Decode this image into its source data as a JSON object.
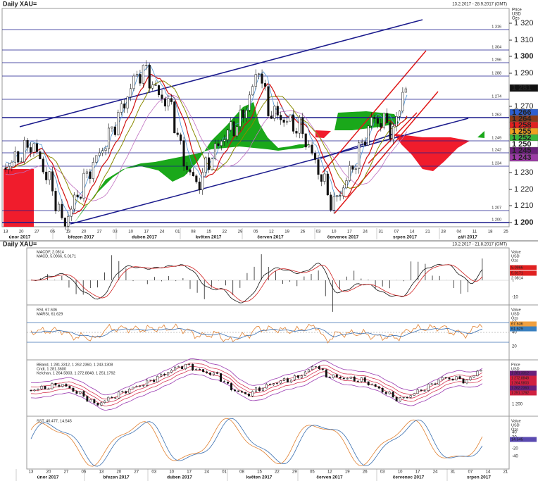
{
  "main": {
    "title": "Daily XAU=",
    "range": "13.2.2017 - 28.9.2017 (GMT)",
    "axis_units": [
      "Price",
      "USD",
      "Ozs"
    ],
    "price_ticks": [
      "1 320",
      "1 310",
      "1 300",
      "1 290",
      "1 270",
      "1 230",
      "1 220",
      "1 210",
      "1 200"
    ],
    "levels": [
      "1 316",
      "1 304",
      "1 296",
      "1 288",
      "1 274",
      "1 263",
      "1 249",
      "1 242",
      "1 234",
      "1 207",
      "1 200"
    ],
    "markers": [
      "1 281",
      "1 266",
      "1 264",
      "1 258",
      "1 255",
      "1 252",
      "1 250",
      "1 245",
      "1 243"
    ],
    "dates": [
      "13",
      "20",
      "27",
      "06",
      "13",
      "20",
      "27",
      "03",
      "10",
      "17",
      "24",
      "01",
      "08",
      "15",
      "22",
      "29",
      "05",
      "12",
      "19",
      "26",
      "03",
      "10",
      "17",
      "24",
      "31",
      "07",
      "14",
      "21",
      "28",
      "04",
      "11",
      "18",
      "25"
    ],
    "months": [
      "únor 2017",
      "březen 2017",
      "duben 2017",
      "květen 2017",
      "červen 2017",
      "červenec 2017",
      "srpen 2017",
      "září 2017"
    ]
  },
  "lower": {
    "title": "Daily XAU=",
    "range": "13.2.2017 - 21.8.2017 (GMT)",
    "macd": {
      "legend": [
        "MACDF, 2.0814",
        "MACD, 5.0966, 5.0171"
      ],
      "axis_units": [
        "Value",
        "USD",
        "Ozs"
      ],
      "ticks": [
        "0",
        "-10"
      ],
      "markers": [
        "5.0966",
        "5.0171",
        "2.0814"
      ]
    },
    "rsi": {
      "legend": [
        "RSI, 67.636",
        "MARSI, 61.629"
      ],
      "axis_units": [
        "Value",
        "USD",
        "Ozs"
      ],
      "ticks": [
        "60",
        "40",
        "20"
      ],
      "markers": [
        "67.636",
        "61.629"
      ]
    },
    "bband": {
      "legend": [
        "BBand, 1 281.3312, 1 262.2360, 1 243.1308",
        "Cndl, 1 281.3600",
        "Kelchan, 1 264.5803, 1 272.8848, 1 251.1792"
      ],
      "axis_units": [
        "Price",
        "USD",
        "Ozs"
      ],
      "ticks": [
        "1 250",
        "1 200"
      ],
      "markers": [
        "1 281.3312",
        "1 272.8848",
        "1 264.5803",
        "1 262.2360",
        "1 251.1792"
      ]
    },
    "stoch": {
      "legend": [
        "SST, 40.477, 14.545"
      ],
      "axis_units": [
        "Value",
        "USD",
        "Ozs"
      ],
      "ticks": [
        "40",
        "20",
        "-20",
        "-40"
      ],
      "markers": [
        "14.545"
      ]
    },
    "dates": [
      "13",
      "20",
      "27",
      "06",
      "13",
      "20",
      "27",
      "03",
      "10",
      "17",
      "24",
      "01",
      "08",
      "15",
      "22",
      "29",
      "05",
      "12",
      "19",
      "26",
      "03",
      "10",
      "17",
      "24",
      "31",
      "07",
      "14",
      "21"
    ],
    "months": [
      "únor 2017",
      "březen 2017",
      "duben 2017",
      "květen 2017",
      "červen 2017",
      "červenec 2017",
      "srpen 2017"
    ]
  }
}
